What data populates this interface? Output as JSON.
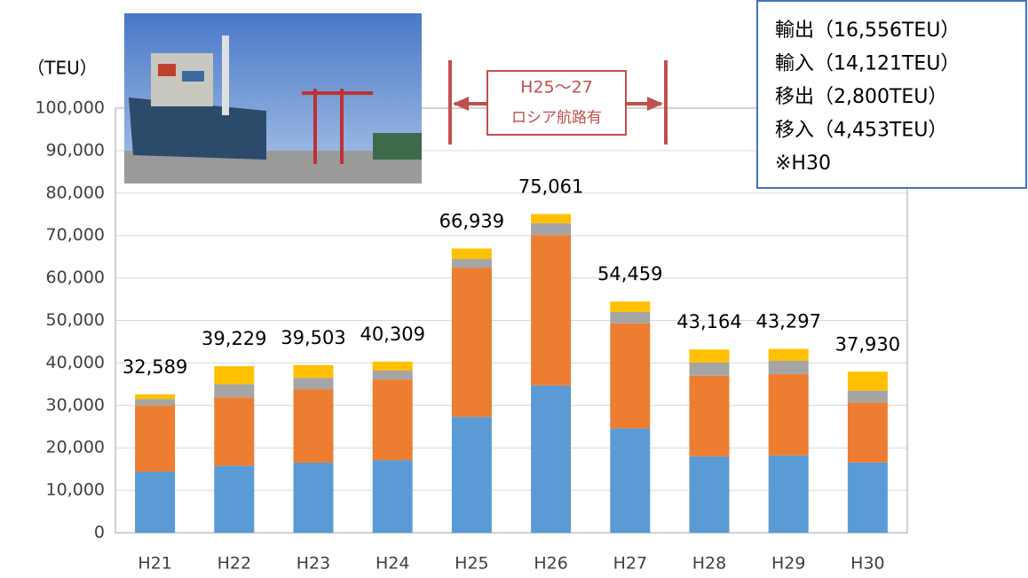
{
  "chart_data": {
    "type": "stacked_bar",
    "y_label": "（TEU）",
    "categories": [
      "H21",
      "H22",
      "H23",
      "H24",
      "H25",
      "H26",
      "H27",
      "H28",
      "H29",
      "H30"
    ],
    "series": [
      {
        "color": "#5b9bd5",
        "values": [
          14400,
          15800,
          16500,
          17100,
          27300,
          34700,
          24600,
          18000,
          18200,
          16556
        ]
      },
      {
        "color": "#ed7d31",
        "values": [
          15600,
          16100,
          17300,
          19000,
          35100,
          35400,
          24700,
          19000,
          19200,
          14121
        ]
      },
      {
        "color": "#a5a5a5",
        "values": [
          1500,
          3100,
          2700,
          2100,
          2100,
          2800,
          2700,
          3100,
          3100,
          2800
        ]
      },
      {
        "color": "#ffc000",
        "values": [
          1089,
          4229,
          3003,
          2109,
          2439,
          2161,
          2459,
          3064,
          2797,
          4453
        ]
      }
    ],
    "totals": {
      "values": [
        32589,
        39229,
        39503,
        40309,
        66939,
        75061,
        54459,
        43164,
        43297,
        37930
      ],
      "value_labels": [
        "32,589",
        "39,229",
        "39,503",
        "40,309",
        "66,939",
        "75,061",
        "54,459",
        "43,164",
        "43,297",
        "37,930"
      ]
    },
    "ylim": [
      0,
      100000
    ],
    "yticks": [
      0,
      {
        "value": 10000,
        "label": "10,000"
      },
      {
        "value": 20000,
        "label": "20,000"
      },
      {
        "value": 30000,
        "label": "30,000"
      },
      {
        "value": 40000,
        "label": "40,000"
      },
      {
        "value": 50000,
        "label": "50,000"
      },
      {
        "value": 60000,
        "label": "60,000"
      },
      {
        "value": 70000,
        "label": "70,000"
      },
      {
        "value": 80000,
        "label": "80,000"
      },
      {
        "value": 90000,
        "label": "90,000"
      },
      {
        "value": 100000,
        "label": "100,000"
      }
    ],
    "grid": true,
    "bracket_label": [
      "H25～27",
      "ロシア航路有"
    ],
    "note_lines": [
      "輸出（16,556TEU）",
      "輸入（14,121TEU）",
      "移出（2,800TEU）",
      "移入（4,453TEU）",
      "※H30"
    ]
  }
}
